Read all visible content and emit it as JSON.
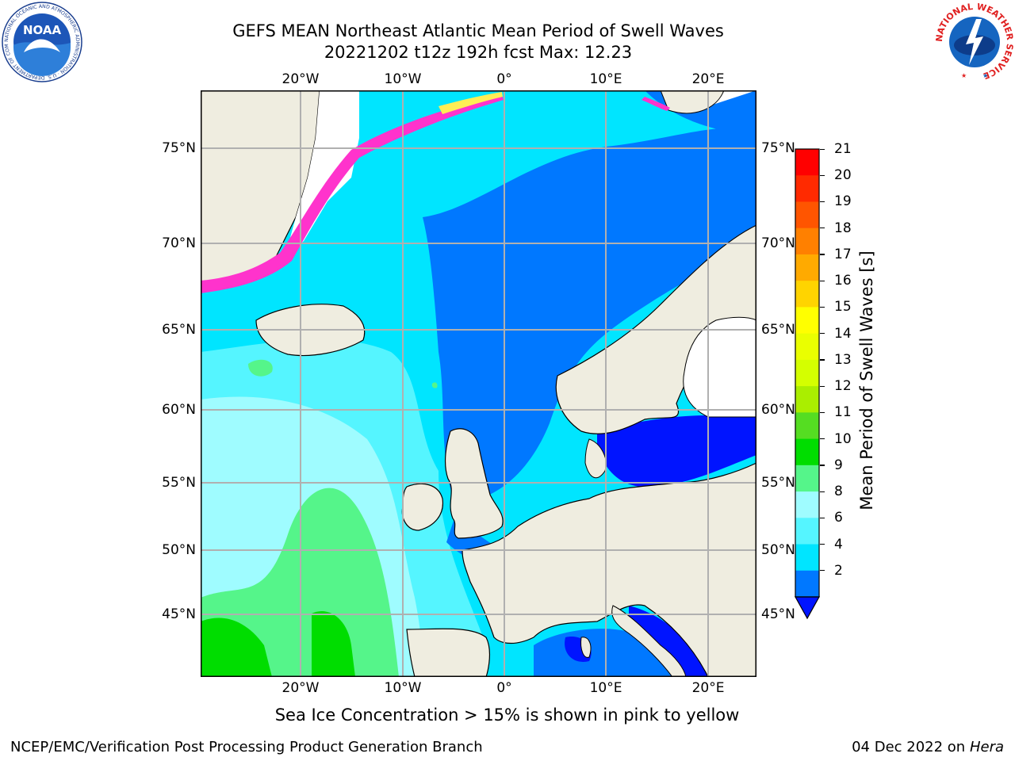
{
  "header": {
    "title_line1": "GEFS MEAN Northeast Atlantic Mean Period of Swell Waves",
    "title_line2": "20221202 t12z 192h fcst   Max: 12.23"
  },
  "logos": {
    "noaa_text": "NOAA",
    "noaa_ring_text": "NATIONAL OCEANIC AND ATMOSPHERIC ADMINISTRATION · U.S. DEPARTMENT OF COMMERCE",
    "nws_ring_text": "NATIONAL WEATHER SERVICE"
  },
  "map": {
    "lon_labels": [
      "20°W",
      "10°W",
      "0°",
      "10°E",
      "20°E"
    ],
    "lat_labels": [
      "75°N",
      "70°N",
      "65°N",
      "60°N",
      "55°N",
      "50°N",
      "45°N"
    ],
    "ice_note": "Sea Ice Concentration > 15% is shown in pink to yellow",
    "colors": {
      "land": "#efede0",
      "ocean_4_6": "#00e5ff",
      "ocean_2_4": "#0078ff",
      "ocean_lt_2": "#0014ff",
      "ocean_6_8": "#55f5ff",
      "ocean_8_9": "#9ffcff",
      "ocean_9_10": "#55f58a",
      "ocean_10_11": "#00dd00",
      "ice_pink": "#ff33cc",
      "ice_yellow": "#ffee55",
      "grid": "#b0b0b0"
    }
  },
  "colorbar": {
    "label": "Mean Period of Swell Waves [s]",
    "ticks": [
      "21",
      "20",
      "19",
      "18",
      "17",
      "16",
      "15",
      "14",
      "13",
      "12",
      "11",
      "10",
      "9",
      "8",
      "6",
      "4",
      "2"
    ],
    "colors_top_to_bottom": [
      "#ff0000",
      "#ff2a00",
      "#ff5500",
      "#ff8000",
      "#ffaa00",
      "#ffd400",
      "#ffff00",
      "#eaff00",
      "#d4ff00",
      "#aaee00",
      "#55dd22",
      "#00dd00",
      "#55f58a",
      "#9ffcff",
      "#55f5ff",
      "#00e5ff",
      "#0078ff"
    ],
    "extend_color": "#0014ff"
  },
  "footer": {
    "left": "NCEP/EMC/Verification Post Processing Product Generation Branch",
    "date": "04 Dec 2022 on",
    "machine": "Hera"
  }
}
